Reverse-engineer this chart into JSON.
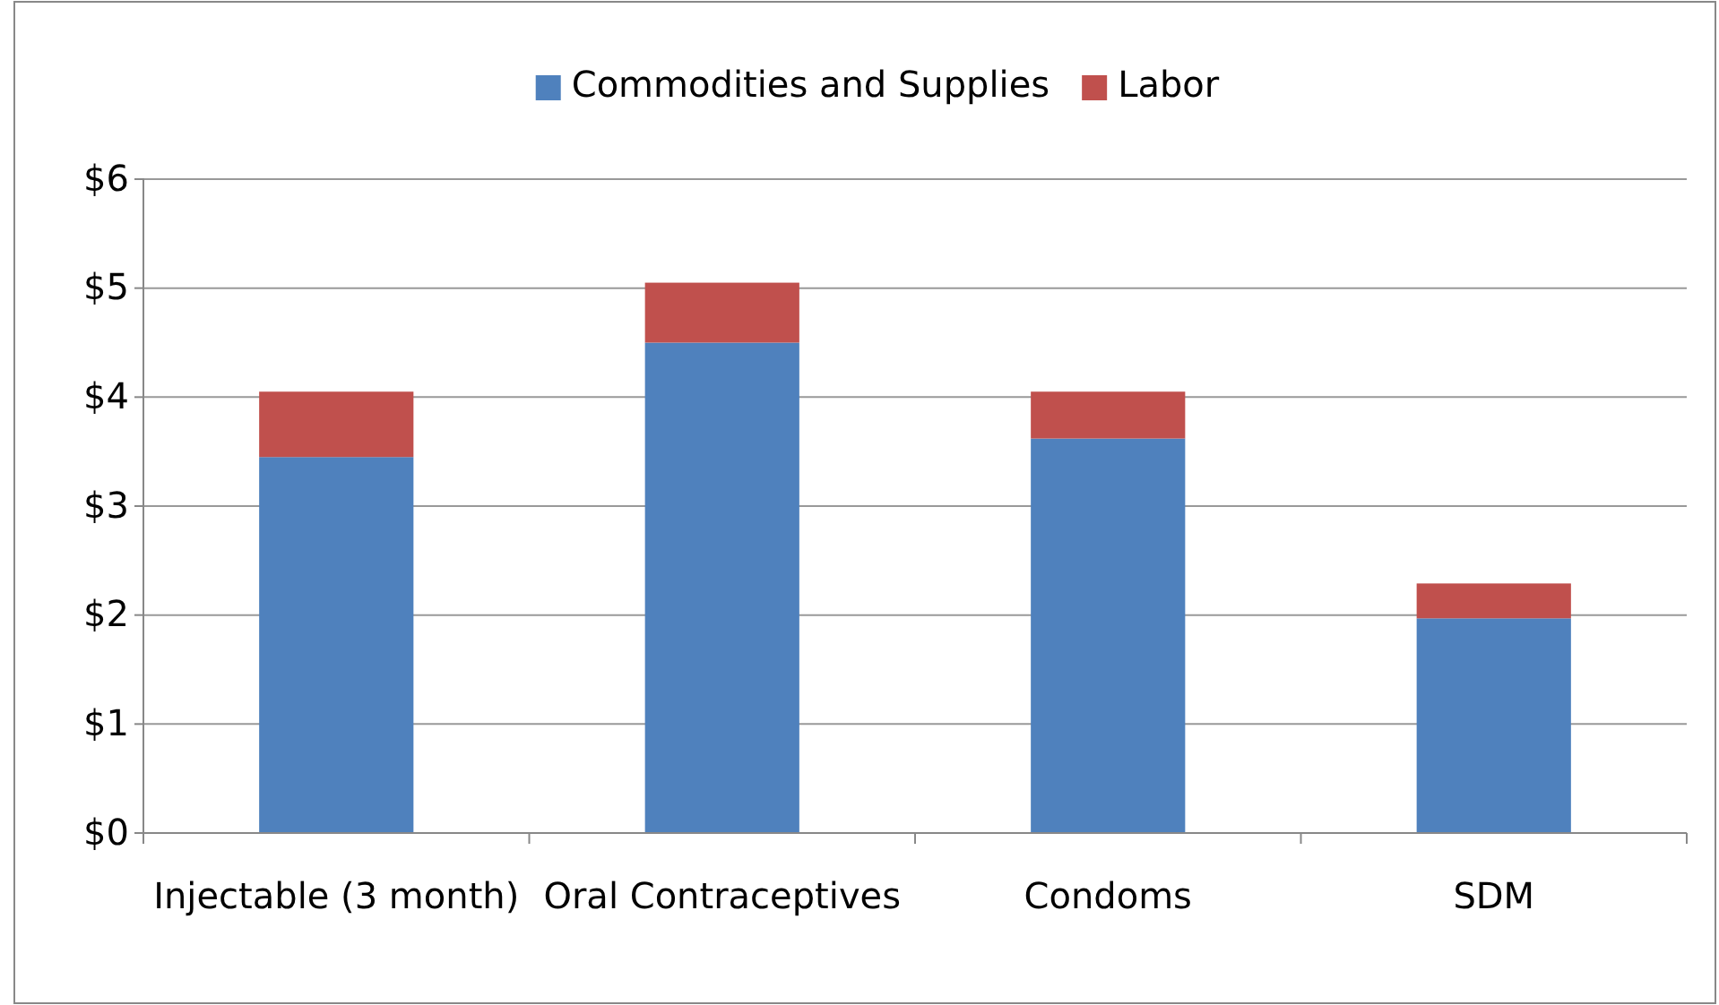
{
  "chart_data": {
    "type": "bar",
    "stacked": true,
    "categories": [
      "Injectable (3 month)",
      "Oral Contraceptives",
      "Condoms",
      "SDM"
    ],
    "series": [
      {
        "name": "Commodities and Supplies",
        "color": "#4f81bd",
        "values": [
          3.45,
          4.5,
          3.62,
          1.97
        ]
      },
      {
        "name": "Labor",
        "color": "#c0504d",
        "values": [
          0.6,
          0.55,
          0.43,
          0.32
        ]
      }
    ],
    "ylim": [
      0,
      6
    ],
    "yticks": [
      {
        "value": 0,
        "label": "$0"
      },
      {
        "value": 1,
        "label": "$1"
      },
      {
        "value": 2,
        "label": "$2"
      },
      {
        "value": 3,
        "label": "$3"
      },
      {
        "value": 4,
        "label": "$4"
      },
      {
        "value": 5,
        "label": "$5"
      },
      {
        "value": 6,
        "label": "$6"
      }
    ],
    "grid": "y",
    "legend": "top"
  }
}
